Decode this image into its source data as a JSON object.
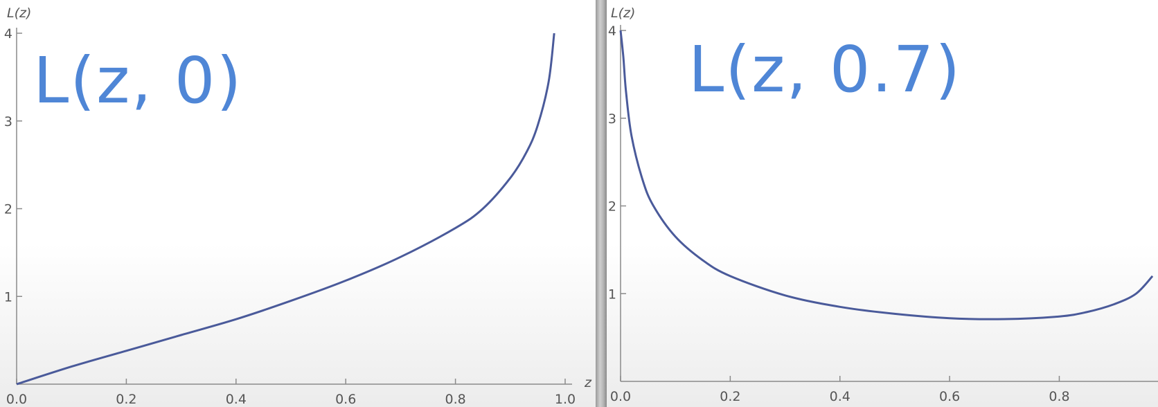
{
  "chart_data": [
    {
      "type": "line",
      "title": "L(z, 0)",
      "xlabel": "z",
      "ylabel": "L(z)",
      "xlim": [
        0,
        1.0
      ],
      "ylim": [
        0,
        4
      ],
      "x_ticks": [
        "0.0",
        "0.2",
        "0.4",
        "0.6",
        "0.8",
        "1.0"
      ],
      "y_ticks": [
        "1",
        "2",
        "3",
        "4"
      ],
      "series": [
        {
          "name": "L(z, 0)",
          "x": [
            0,
            0.1,
            0.2,
            0.3,
            0.4,
            0.5,
            0.6,
            0.7,
            0.8,
            0.85,
            0.9,
            0.93,
            0.95,
            0.97,
            0.98
          ],
          "y": [
            0,
            0.2,
            0.38,
            0.56,
            0.74,
            0.95,
            1.18,
            1.45,
            1.78,
            2.0,
            2.35,
            2.65,
            2.95,
            3.45,
            4.0
          ]
        }
      ]
    },
    {
      "type": "line",
      "title": "L(z, 0.7)",
      "xlabel": "",
      "ylabel": "L(z)",
      "xlim": [
        0,
        0.98
      ],
      "ylim": [
        0,
        4
      ],
      "x_ticks": [
        "0.0",
        "0.2",
        "0.4",
        "0.6",
        "0.8"
      ],
      "y_ticks": [
        "1",
        "2",
        "3",
        "4"
      ],
      "series": [
        {
          "name": "L(z, 0.7)",
          "x": [
            0.0,
            0.005,
            0.01,
            0.02,
            0.04,
            0.06,
            0.1,
            0.15,
            0.2,
            0.3,
            0.4,
            0.5,
            0.6,
            0.7,
            0.8,
            0.85,
            0.9,
            0.94,
            0.97
          ],
          "y": [
            4.0,
            3.7,
            3.3,
            2.8,
            2.3,
            2.0,
            1.65,
            1.38,
            1.2,
            0.98,
            0.85,
            0.77,
            0.72,
            0.71,
            0.74,
            0.79,
            0.88,
            1.0,
            1.2
          ]
        }
      ]
    }
  ]
}
